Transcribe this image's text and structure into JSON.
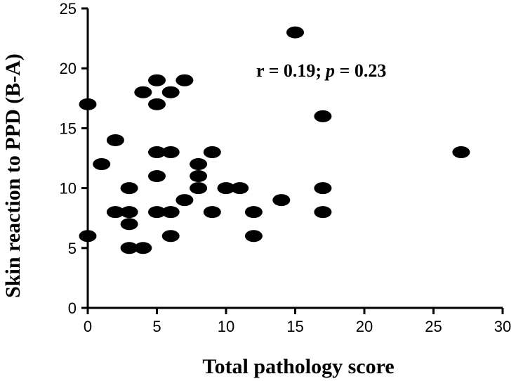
{
  "chart_data": {
    "type": "scatter",
    "xlabel": "Total pathology score",
    "ylabel": "Skin reaction to PPD (B-A)",
    "xlim": [
      0,
      30
    ],
    "ylim": [
      0,
      25
    ],
    "xticks": [
      0,
      5,
      10,
      15,
      20,
      25,
      30
    ],
    "yticks": [
      0,
      5,
      10,
      15,
      20,
      25
    ],
    "annotation": {
      "r_part": "r = 0.19;",
      "p_symbol": "p",
      "p_part": " = 0.23"
    },
    "grid": false,
    "marker_color": "#000000",
    "points": [
      {
        "x": 0,
        "y": 17
      },
      {
        "x": 0,
        "y": 6
      },
      {
        "x": 1,
        "y": 12
      },
      {
        "x": 2,
        "y": 14
      },
      {
        "x": 2,
        "y": 8
      },
      {
        "x": 3,
        "y": 8
      },
      {
        "x": 3,
        "y": 10
      },
      {
        "x": 3,
        "y": 7
      },
      {
        "x": 3,
        "y": 5
      },
      {
        "x": 4,
        "y": 5
      },
      {
        "x": 4,
        "y": 18
      },
      {
        "x": 5,
        "y": 19
      },
      {
        "x": 5,
        "y": 17
      },
      {
        "x": 5,
        "y": 13
      },
      {
        "x": 5,
        "y": 11
      },
      {
        "x": 5,
        "y": 8
      },
      {
        "x": 6,
        "y": 18
      },
      {
        "x": 6,
        "y": 13
      },
      {
        "x": 6,
        "y": 8
      },
      {
        "x": 6,
        "y": 6
      },
      {
        "x": 7,
        "y": 19
      },
      {
        "x": 7,
        "y": 9
      },
      {
        "x": 8,
        "y": 12
      },
      {
        "x": 8,
        "y": 11
      },
      {
        "x": 8,
        "y": 10
      },
      {
        "x": 9,
        "y": 13
      },
      {
        "x": 9,
        "y": 8
      },
      {
        "x": 10,
        "y": 10
      },
      {
        "x": 11,
        "y": 10
      },
      {
        "x": 12,
        "y": 8
      },
      {
        "x": 12,
        "y": 6
      },
      {
        "x": 14,
        "y": 9
      },
      {
        "x": 15,
        "y": 23
      },
      {
        "x": 17,
        "y": 16
      },
      {
        "x": 17,
        "y": 10
      },
      {
        "x": 17,
        "y": 8
      },
      {
        "x": 27,
        "y": 13
      }
    ]
  }
}
